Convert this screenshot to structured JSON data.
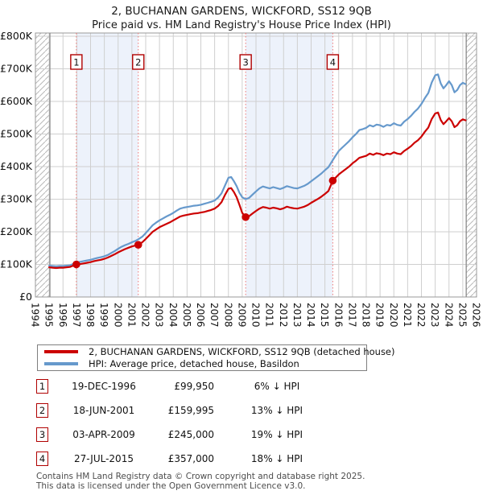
{
  "title": "2, BUCHANAN GARDENS, WICKFORD, SS12 9QB",
  "subtitle": "Price paid vs. HM Land Registry's House Price Index (HPI)",
  "chart_data": {
    "type": "line",
    "xlim": [
      1994,
      2026
    ],
    "ylim": [
      0,
      800
    ],
    "y_unit": "GBP thousands",
    "y_tick_values": [
      0,
      100,
      200,
      300,
      400,
      500,
      600,
      700,
      800
    ],
    "y_tick_labels": [
      "£0",
      "£100K",
      "£200K",
      "£300K",
      "£400K",
      "£500K",
      "£600K",
      "£700K",
      "£800K"
    ],
    "x_tick_labels": [
      "1994",
      "1995",
      "1996",
      "1997",
      "1998",
      "1999",
      "2000",
      "2001",
      "2002",
      "2003",
      "2004",
      "2005",
      "2006",
      "2007",
      "2008",
      "2009",
      "2010",
      "2011",
      "2012",
      "2013",
      "2014",
      "2015",
      "2016",
      "2017",
      "2018",
      "2019",
      "2020",
      "2021",
      "2022",
      "2023",
      "2024",
      "2025",
      "2026"
    ],
    "grid": true,
    "colors": {
      "property_line": "#cc0000",
      "hpi_line": "#6699cc",
      "sale_dot": "#cc0000",
      "sale_dash_line": "#ee7777",
      "marker_box_border": "#b00000",
      "shaded_band": "#edf2fb",
      "gridline": "#cfcfcf",
      "plot_border": "#9a9a9a",
      "no_data_edge": "#8a8a8a",
      "hatch_line": "#b8b8b8"
    },
    "shaded_bands": [
      [
        1996.97,
        2001.46
      ],
      [
        2009.25,
        2015.57
      ]
    ],
    "hatched_no_data": [
      [
        1994,
        1995.05
      ],
      [
        2025.25,
        2026
      ]
    ],
    "sale_markers": [
      {
        "n": "1",
        "year": 1996.97,
        "value": 99.95
      },
      {
        "n": "2",
        "year": 2001.46,
        "value": 160.0
      },
      {
        "n": "3",
        "year": 2009.25,
        "value": 245.0
      },
      {
        "n": "4",
        "year": 2015.57,
        "value": 357.0
      }
    ],
    "series": [
      {
        "name": "2, BUCHANAN GARDENS, WICKFORD, SS12 9QB (detached house)",
        "color": "#cc0000",
        "points": [
          [
            1995,
            91
          ],
          [
            1995.25,
            90
          ],
          [
            1995.5,
            89
          ],
          [
            1995.75,
            90
          ],
          [
            1996,
            90
          ],
          [
            1996.5,
            92
          ],
          [
            1996.97,
            99.95
          ],
          [
            1997.25,
            101
          ],
          [
            1997.5,
            103
          ],
          [
            1997.75,
            105
          ],
          [
            1998,
            107
          ],
          [
            1998.25,
            110
          ],
          [
            1998.5,
            112
          ],
          [
            1998.75,
            114
          ],
          [
            1999,
            117
          ],
          [
            1999.25,
            121
          ],
          [
            1999.5,
            126
          ],
          [
            1999.75,
            131
          ],
          [
            2000,
            137
          ],
          [
            2000.25,
            142
          ],
          [
            2000.5,
            147
          ],
          [
            2000.75,
            151
          ],
          [
            2001,
            155
          ],
          [
            2001.25,
            158
          ],
          [
            2001.46,
            160
          ],
          [
            2001.75,
            168
          ],
          [
            2002,
            178
          ],
          [
            2002.25,
            189
          ],
          [
            2002.5,
            200
          ],
          [
            2002.75,
            207
          ],
          [
            2003,
            214
          ],
          [
            2003.25,
            219
          ],
          [
            2003.5,
            224
          ],
          [
            2003.75,
            229
          ],
          [
            2004,
            235
          ],
          [
            2004.25,
            241
          ],
          [
            2004.5,
            247
          ],
          [
            2004.75,
            250
          ],
          [
            2005,
            252
          ],
          [
            2005.25,
            254
          ],
          [
            2005.5,
            256
          ],
          [
            2005.75,
            257
          ],
          [
            2006,
            259
          ],
          [
            2006.25,
            261
          ],
          [
            2006.5,
            264
          ],
          [
            2006.75,
            267
          ],
          [
            2007,
            271
          ],
          [
            2007.25,
            279
          ],
          [
            2007.5,
            291
          ],
          [
            2007.75,
            313
          ],
          [
            2008,
            332
          ],
          [
            2008.2,
            334
          ],
          [
            2008.4,
            322
          ],
          [
            2008.6,
            306
          ],
          [
            2008.8,
            283
          ],
          [
            2009,
            258
          ],
          [
            2009.25,
            245
          ],
          [
            2009.5,
            248
          ],
          [
            2009.75,
            256
          ],
          [
            2010,
            264
          ],
          [
            2010.25,
            271
          ],
          [
            2010.5,
            276
          ],
          [
            2010.75,
            274
          ],
          [
            2011,
            271
          ],
          [
            2011.25,
            274
          ],
          [
            2011.5,
            272
          ],
          [
            2011.75,
            269
          ],
          [
            2012,
            272
          ],
          [
            2012.25,
            277
          ],
          [
            2012.5,
            274
          ],
          [
            2012.75,
            272
          ],
          [
            2013,
            271
          ],
          [
            2013.25,
            274
          ],
          [
            2013.5,
            277
          ],
          [
            2013.75,
            282
          ],
          [
            2014,
            289
          ],
          [
            2014.25,
            295
          ],
          [
            2014.5,
            301
          ],
          [
            2014.75,
            308
          ],
          [
            2015,
            316
          ],
          [
            2015.25,
            325
          ],
          [
            2015.57,
            357
          ],
          [
            2015.75,
            365
          ],
          [
            2016,
            376
          ],
          [
            2016.25,
            384
          ],
          [
            2016.5,
            392
          ],
          [
            2016.75,
            400
          ],
          [
            2017,
            410
          ],
          [
            2017.25,
            418
          ],
          [
            2017.5,
            427
          ],
          [
            2017.75,
            430
          ],
          [
            2018,
            433
          ],
          [
            2018.25,
            440
          ],
          [
            2018.5,
            436
          ],
          [
            2018.75,
            441
          ],
          [
            2019,
            439
          ],
          [
            2019.25,
            435
          ],
          [
            2019.5,
            440
          ],
          [
            2019.75,
            438
          ],
          [
            2020,
            444
          ],
          [
            2020.25,
            440
          ],
          [
            2020.5,
            438
          ],
          [
            2020.75,
            448
          ],
          [
            2021,
            455
          ],
          [
            2021.25,
            463
          ],
          [
            2021.5,
            473
          ],
          [
            2021.75,
            481
          ],
          [
            2022,
            492
          ],
          [
            2022.25,
            507
          ],
          [
            2022.5,
            520
          ],
          [
            2022.75,
            546
          ],
          [
            2023,
            563
          ],
          [
            2023.2,
            566
          ],
          [
            2023.4,
            543
          ],
          [
            2023.6,
            530
          ],
          [
            2023.8,
            539
          ],
          [
            2024,
            549
          ],
          [
            2024.2,
            539
          ],
          [
            2024.4,
            521
          ],
          [
            2024.6,
            527
          ],
          [
            2024.8,
            539
          ],
          [
            2025,
            545
          ],
          [
            2025.2,
            542
          ]
        ]
      },
      {
        "name": "HPI: Average price, detached house, Basildon",
        "color": "#6699cc",
        "points": [
          [
            1995,
            96
          ],
          [
            1995.25,
            95
          ],
          [
            1995.5,
            94
          ],
          [
            1995.75,
            95
          ],
          [
            1996,
            95
          ],
          [
            1996.5,
            97
          ],
          [
            1996.97,
            106
          ],
          [
            1997.25,
            108
          ],
          [
            1997.5,
            110
          ],
          [
            1997.75,
            112
          ],
          [
            1998,
            114
          ],
          [
            1998.25,
            117
          ],
          [
            1998.5,
            120
          ],
          [
            1998.75,
            122
          ],
          [
            1999,
            125
          ],
          [
            1999.25,
            129
          ],
          [
            1999.5,
            135
          ],
          [
            1999.75,
            141
          ],
          [
            2000,
            148
          ],
          [
            2000.25,
            154
          ],
          [
            2000.5,
            159
          ],
          [
            2000.75,
            163
          ],
          [
            2001,
            168
          ],
          [
            2001.25,
            172
          ],
          [
            2001.46,
            177
          ],
          [
            2001.75,
            185
          ],
          [
            2002,
            196
          ],
          [
            2002.25,
            208
          ],
          [
            2002.5,
            220
          ],
          [
            2002.75,
            228
          ],
          [
            2003,
            235
          ],
          [
            2003.25,
            241
          ],
          [
            2003.5,
            247
          ],
          [
            2003.75,
            252
          ],
          [
            2004,
            258
          ],
          [
            2004.25,
            265
          ],
          [
            2004.5,
            271
          ],
          [
            2004.75,
            274
          ],
          [
            2005,
            276
          ],
          [
            2005.25,
            278
          ],
          [
            2005.5,
            280
          ],
          [
            2005.75,
            281
          ],
          [
            2006,
            283
          ],
          [
            2006.25,
            286
          ],
          [
            2006.5,
            289
          ],
          [
            2006.75,
            292
          ],
          [
            2007,
            296
          ],
          [
            2007.25,
            305
          ],
          [
            2007.5,
            318
          ],
          [
            2007.75,
            342
          ],
          [
            2008,
            366
          ],
          [
            2008.2,
            368
          ],
          [
            2008.4,
            355
          ],
          [
            2008.6,
            340
          ],
          [
            2008.8,
            320
          ],
          [
            2009,
            306
          ],
          [
            2009.25,
            300
          ],
          [
            2009.5,
            304
          ],
          [
            2009.75,
            314
          ],
          [
            2010,
            324
          ],
          [
            2010.25,
            333
          ],
          [
            2010.5,
            339
          ],
          [
            2010.75,
            336
          ],
          [
            2011,
            333
          ],
          [
            2011.25,
            337
          ],
          [
            2011.5,
            334
          ],
          [
            2011.75,
            331
          ],
          [
            2012,
            335
          ],
          [
            2012.25,
            340
          ],
          [
            2012.5,
            337
          ],
          [
            2012.75,
            334
          ],
          [
            2013,
            333
          ],
          [
            2013.25,
            337
          ],
          [
            2013.5,
            341
          ],
          [
            2013.75,
            347
          ],
          [
            2014,
            355
          ],
          [
            2014.25,
            363
          ],
          [
            2014.5,
            371
          ],
          [
            2014.75,
            379
          ],
          [
            2015,
            389
          ],
          [
            2015.25,
            398
          ],
          [
            2015.57,
            420
          ],
          [
            2015.75,
            432
          ],
          [
            2016,
            448
          ],
          [
            2016.25,
            458
          ],
          [
            2016.5,
            468
          ],
          [
            2016.75,
            478
          ],
          [
            2017,
            490
          ],
          [
            2017.25,
            500
          ],
          [
            2017.5,
            512
          ],
          [
            2017.75,
            515
          ],
          [
            2018,
            519
          ],
          [
            2018.25,
            527
          ],
          [
            2018.5,
            523
          ],
          [
            2018.75,
            529
          ],
          [
            2019,
            527
          ],
          [
            2019.25,
            522
          ],
          [
            2019.5,
            528
          ],
          [
            2019.75,
            526
          ],
          [
            2020,
            533
          ],
          [
            2020.25,
            528
          ],
          [
            2020.5,
            526
          ],
          [
            2020.75,
            538
          ],
          [
            2021,
            546
          ],
          [
            2021.25,
            556
          ],
          [
            2021.5,
            568
          ],
          [
            2021.75,
            578
          ],
          [
            2022,
            592
          ],
          [
            2022.25,
            610
          ],
          [
            2022.5,
            626
          ],
          [
            2022.75,
            658
          ],
          [
            2023,
            680
          ],
          [
            2023.2,
            683
          ],
          [
            2023.4,
            655
          ],
          [
            2023.6,
            640
          ],
          [
            2023.8,
            650
          ],
          [
            2024,
            662
          ],
          [
            2024.2,
            650
          ],
          [
            2024.4,
            628
          ],
          [
            2024.6,
            635
          ],
          [
            2024.8,
            650
          ],
          [
            2025,
            657
          ],
          [
            2025.2,
            653
          ]
        ]
      }
    ]
  },
  "legend": {
    "items": [
      {
        "label": "2, BUCHANAN GARDENS, WICKFORD, SS12 9QB (detached house)",
        "color": "#cc0000"
      },
      {
        "label": "HPI: Average price, detached house, Basildon",
        "color": "#6699cc"
      }
    ]
  },
  "table": {
    "rows": [
      {
        "num": "1",
        "date": "19-DEC-1996",
        "price": "£99,950",
        "vs_hpi": "6% ↓ HPI"
      },
      {
        "num": "2",
        "date": "18-JUN-2001",
        "price": "£159,995",
        "vs_hpi": "13% ↓ HPI"
      },
      {
        "num": "3",
        "date": "03-APR-2009",
        "price": "£245,000",
        "vs_hpi": "19% ↓ HPI"
      },
      {
        "num": "4",
        "date": "27-JUL-2015",
        "price": "£357,000",
        "vs_hpi": "18% ↓ HPI"
      }
    ]
  },
  "footer": {
    "line1": "Contains HM Land Registry data © Crown copyright and database right 2025.",
    "line2": "This data is licensed under the Open Government Licence v3.0."
  }
}
